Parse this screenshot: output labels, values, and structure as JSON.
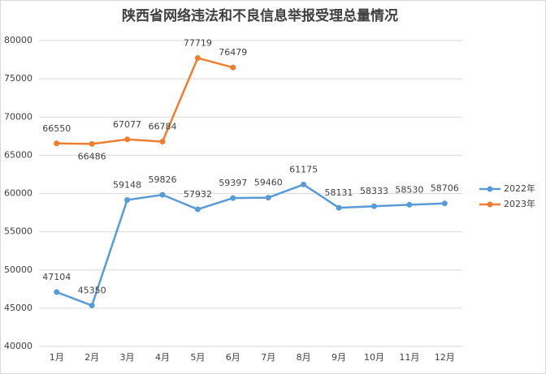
{
  "chart_data": {
    "type": "line",
    "title": "陕西省网络违法和不良信息举报受理总量情况",
    "categories": [
      "1月",
      "2月",
      "3月",
      "4月",
      "5月",
      "6月",
      "7月",
      "8月",
      "9月",
      "10月",
      "11月",
      "12月"
    ],
    "series": [
      {
        "name": "2022年",
        "color": "#5b9bd5",
        "values": [
          47104,
          45350,
          59148,
          59826,
          57932,
          59397,
          59460,
          61175,
          58131,
          58333,
          58530,
          58706
        ]
      },
      {
        "name": "2023年",
        "color": "#ed7d31",
        "values": [
          66550,
          66486,
          67077,
          66784,
          77719,
          76479,
          null,
          null,
          null,
          null,
          null,
          null
        ]
      }
    ],
    "ylim": [
      40000,
      80000
    ],
    "yticks": [
      40000,
      45000,
      50000,
      55000,
      60000,
      65000,
      70000,
      75000,
      80000
    ],
    "grid": true,
    "legend": "right"
  }
}
